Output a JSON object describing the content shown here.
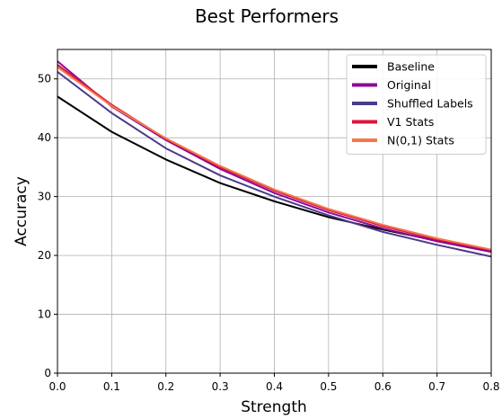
{
  "chart_data": {
    "type": "line",
    "title": "Best Performers",
    "xlabel": "Strength",
    "ylabel": "Accuracy",
    "x": [
      0.0,
      0.1,
      0.2,
      0.3,
      0.4,
      0.5,
      0.6,
      0.7,
      0.8
    ],
    "x_ticks": [
      "0.0",
      "0.1",
      "0.2",
      "0.3",
      "0.4",
      "0.5",
      "0.6",
      "0.7",
      "0.8"
    ],
    "y_ticks": [
      "0",
      "10",
      "20",
      "30",
      "40",
      "50"
    ],
    "xlim": [
      0.0,
      0.8
    ],
    "ylim": [
      0,
      55
    ],
    "grid": true,
    "legend_position": "top-right",
    "series": [
      {
        "name": "Baseline",
        "color": "#000000",
        "values": [
          47.0,
          41.0,
          36.3,
          32.3,
          29.2,
          26.5,
          24.4,
          22.5,
          20.8
        ]
      },
      {
        "name": "Original",
        "color": "#8b0a96",
        "values": [
          53.0,
          45.3,
          39.6,
          34.7,
          30.6,
          27.3,
          24.6,
          22.4,
          20.6
        ]
      },
      {
        "name": "Shuffled Labels",
        "color": "#4b3a8c",
        "values": [
          51.2,
          44.2,
          38.2,
          33.6,
          30.0,
          26.8,
          24.0,
          21.8,
          19.8
        ]
      },
      {
        "name": "V1 Stats",
        "color": "#dc143c",
        "values": [
          52.4,
          45.6,
          39.8,
          35.0,
          31.0,
          27.7,
          25.0,
          22.7,
          20.9
        ]
      },
      {
        "name": "N(0,1) Stats",
        "color": "#f4784a",
        "values": [
          52.0,
          45.4,
          39.9,
          35.2,
          31.2,
          27.9,
          25.2,
          22.9,
          21.0
        ]
      }
    ]
  }
}
